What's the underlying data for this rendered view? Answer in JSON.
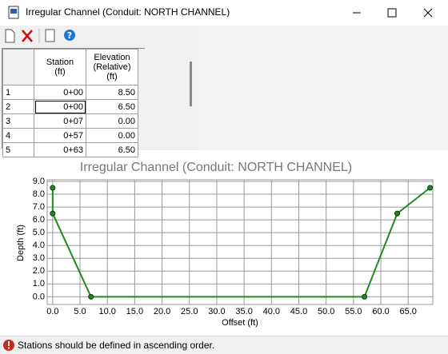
{
  "window": {
    "title": "Irregular Channel (Conduit:  NORTH CHANNEL)"
  },
  "table": {
    "headers": [
      "Station\n(ft)",
      "Elevation\n(Relative)\n(ft)"
    ],
    "rows": [
      [
        "1",
        "0+00",
        "8.50"
      ],
      [
        "2",
        "0+00",
        "6.50"
      ],
      [
        "3",
        "0+07",
        "0.00"
      ],
      [
        "4",
        "0+57",
        "0.00"
      ],
      [
        "5",
        "0+63",
        "6.50"
      ]
    ]
  },
  "chart_data": {
    "type": "line",
    "title": "Irregular Channel (Conduit:  NORTH CHANNEL)",
    "x_label": "Offset (ft)",
    "y_label": "Depth (ft)",
    "x": [
      0,
      0,
      7,
      57,
      63,
      69
    ],
    "series": [
      {
        "color": "#1f8a1f",
        "values": [
          8.5,
          6.5,
          0,
          0,
          6.5,
          8.5
        ]
      }
    ],
    "xlim": [
      -1,
      69.5
    ],
    "ylim": [
      -0.6,
      9.0
    ],
    "xticks": [
      {
        "value": 0,
        "label": "0.0"
      },
      {
        "value": 5,
        "label": "5.0"
      },
      {
        "value": 10,
        "label": "10.0"
      },
      {
        "value": 15,
        "label": "15.0"
      },
      {
        "value": 20,
        "label": "20.0"
      },
      {
        "value": 25,
        "label": "25.0"
      },
      {
        "value": 30,
        "label": "30.0"
      },
      {
        "value": 35,
        "label": "35.0"
      },
      {
        "value": 40,
        "label": "40.0"
      },
      {
        "value": 45,
        "label": "45.0"
      },
      {
        "value": 50,
        "label": "50.0"
      },
      {
        "value": 55,
        "label": "55.0"
      },
      {
        "value": 60,
        "label": "60.0"
      },
      {
        "value": 65,
        "label": "65.0"
      }
    ],
    "yticks": [
      {
        "value": 0,
        "label": "0.0"
      },
      {
        "value": 1,
        "label": "1.0"
      },
      {
        "value": 2,
        "label": "2.0"
      },
      {
        "value": 3,
        "label": "3.0"
      },
      {
        "value": 4,
        "label": "4.0"
      },
      {
        "value": 5,
        "label": "5.0"
      },
      {
        "value": 6,
        "label": "6.0"
      },
      {
        "value": 7,
        "label": "7.0"
      },
      {
        "value": 8,
        "label": "8.0"
      },
      {
        "value": 9,
        "label": "9.0"
      }
    ],
    "grid": true
  },
  "status": "Stations should be defined in ascending order."
}
